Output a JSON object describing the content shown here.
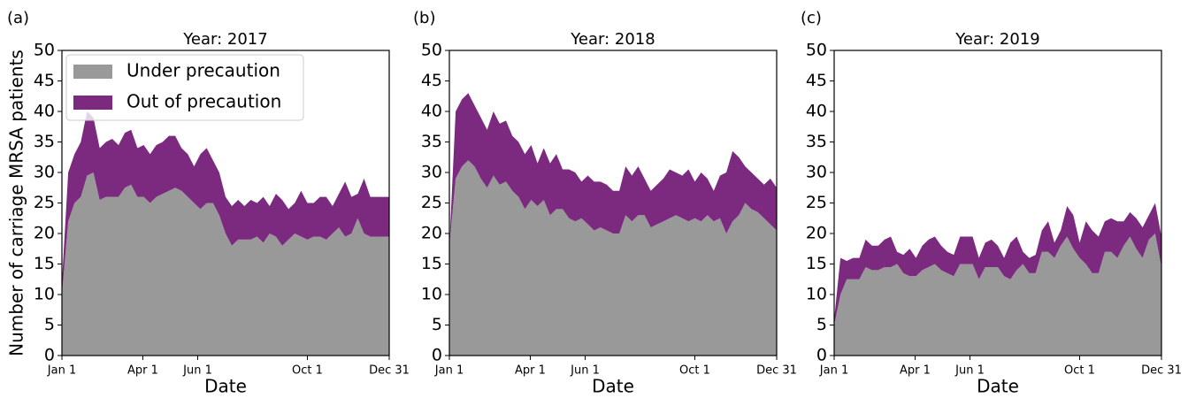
{
  "chart_data": [
    {
      "type": "area",
      "panel_label": "(a)",
      "title": "Year: 2017",
      "xlabel": "Date",
      "ylabel": "Number of carriage MRSA patients",
      "legend": "upper left",
      "x": [
        1,
        8,
        15,
        22,
        29,
        36,
        43,
        50,
        57,
        64,
        71,
        78,
        85,
        92,
        99,
        106,
        113,
        120,
        127,
        134,
        141,
        148,
        155,
        162,
        169,
        176,
        183,
        190,
        197,
        204,
        211,
        218,
        225,
        232,
        239,
        246,
        253,
        260,
        267,
        274,
        281,
        288,
        295,
        302,
        309,
        316,
        323,
        330,
        337,
        344,
        351,
        358,
        365
      ],
      "xlim": [
        1,
        365
      ],
      "xticks": [
        {
          "value": 1,
          "label": "Jan 1"
        },
        {
          "value": 91,
          "label": "Apr 1"
        },
        {
          "value": 152,
          "label": "Jun 1"
        },
        {
          "value": 274,
          "label": "Oct 1"
        },
        {
          "value": 365,
          "label": "Dec 31"
        }
      ],
      "ylim": [
        0,
        50
      ],
      "yticks": [
        0,
        5,
        10,
        15,
        20,
        25,
        30,
        35,
        40,
        45,
        50
      ],
      "series": [
        {
          "name": "Under precaution",
          "color": "#999999",
          "values": [
            10,
            22,
            25,
            26,
            29.5,
            30,
            25.5,
            26,
            26,
            26,
            27.5,
            28,
            26,
            26,
            25,
            26,
            26.5,
            27,
            27.5,
            27,
            26,
            25,
            24,
            25,
            25,
            23,
            20,
            18,
            19,
            19,
            19,
            19.5,
            18.5,
            20,
            19.5,
            18,
            19,
            20,
            19.5,
            19,
            19.5,
            19.5,
            19,
            20,
            21,
            19.5,
            20,
            22.5,
            20,
            19.5,
            19.5,
            19.5,
            19.5
          ]
        },
        {
          "name": "Out of precaution",
          "color": "#7b2a7f",
          "values": [
            2,
            8,
            8,
            9,
            10.5,
            9,
            8.5,
            9,
            9.5,
            8.5,
            9,
            9,
            8,
            8.5,
            8,
            8.5,
            8.5,
            9,
            8.5,
            7,
            7,
            6,
            9,
            9,
            7,
            7,
            6,
            6.5,
            6.5,
            5.5,
            6.5,
            5.5,
            7.5,
            4.5,
            7,
            7.5,
            5,
            5,
            7.5,
            6,
            5.5,
            6.5,
            7,
            4.5,
            5.5,
            9,
            6,
            4,
            9,
            6.5,
            6.5,
            6.5,
            6.5
          ]
        }
      ]
    },
    {
      "type": "area",
      "panel_label": "(b)",
      "title": "Year: 2018",
      "xlabel": "Date",
      "x": [
        1,
        8,
        15,
        22,
        29,
        36,
        43,
        50,
        57,
        64,
        71,
        78,
        85,
        92,
        99,
        106,
        113,
        120,
        127,
        134,
        141,
        148,
        155,
        162,
        169,
        176,
        183,
        190,
        197,
        204,
        211,
        218,
        225,
        232,
        239,
        246,
        253,
        260,
        267,
        274,
        281,
        288,
        295,
        302,
        309,
        316,
        323,
        330,
        337,
        344,
        351,
        358,
        365
      ],
      "xlim": [
        1,
        365
      ],
      "xticks": [
        {
          "value": 1,
          "label": "Jan 1"
        },
        {
          "value": 91,
          "label": "Apr 1"
        },
        {
          "value": 152,
          "label": "Jun 1"
        },
        {
          "value": 274,
          "label": "Oct 1"
        },
        {
          "value": 365,
          "label": "Dec 31"
        }
      ],
      "ylim": [
        0,
        50
      ],
      "yticks": [
        0,
        5,
        10,
        15,
        20,
        25,
        30,
        35,
        40,
        45,
        50
      ],
      "series": [
        {
          "color": "#999999",
          "values": [
            18,
            29,
            31,
            32,
            31,
            29,
            27.5,
            29.5,
            28,
            28.5,
            27,
            26,
            24,
            25.5,
            24.5,
            25.5,
            23,
            24,
            24,
            22.5,
            22,
            22.5,
            21.5,
            20.5,
            21,
            20.5,
            20,
            20,
            23,
            22,
            23,
            23,
            21,
            21.5,
            22,
            22.5,
            23,
            22.5,
            22,
            22.5,
            22,
            23,
            22,
            22.5,
            20,
            22,
            23,
            25,
            24,
            23.5,
            22.5,
            21.5,
            20.5
          ]
        },
        {
          "color": "#7b2a7f",
          "values": [
            0,
            11,
            11,
            11,
            10,
            10,
            9.5,
            10.5,
            10,
            10,
            9,
            9,
            9,
            9,
            7,
            8.5,
            8.5,
            9,
            6.5,
            8,
            8,
            6,
            8,
            8,
            7.5,
            7.5,
            7,
            7,
            8,
            7.5,
            8,
            6,
            6,
            6.5,
            7,
            8,
            7,
            7,
            8.5,
            6,
            8,
            6,
            5,
            7,
            10,
            11.5,
            9.5,
            6,
            6,
            5.5,
            5.5,
            7.5,
            7
          ]
        }
      ]
    },
    {
      "type": "area",
      "panel_label": "(c)",
      "title": "Year: 2019",
      "xlabel": "Date",
      "x": [
        1,
        8,
        15,
        22,
        29,
        36,
        43,
        50,
        57,
        64,
        71,
        78,
        85,
        92,
        99,
        106,
        113,
        120,
        127,
        134,
        141,
        148,
        155,
        162,
        169,
        176,
        183,
        190,
        197,
        204,
        211,
        218,
        225,
        232,
        239,
        246,
        253,
        260,
        267,
        274,
        281,
        288,
        295,
        302,
        309,
        316,
        323,
        330,
        337,
        344,
        351,
        358,
        365
      ],
      "xlim": [
        1,
        365
      ],
      "xticks": [
        {
          "value": 1,
          "label": "Jan 1"
        },
        {
          "value": 91,
          "label": "Apr 1"
        },
        {
          "value": 152,
          "label": "Jun 1"
        },
        {
          "value": 274,
          "label": "Oct 1"
        },
        {
          "value": 365,
          "label": "Dec 31"
        }
      ],
      "ylim": [
        0,
        50
      ],
      "yticks": [
        0,
        5,
        10,
        15,
        20,
        25,
        30,
        35,
        40,
        45,
        50
      ],
      "series": [
        {
          "color": "#999999",
          "values": [
            5,
            10,
            12.5,
            12.5,
            12.5,
            14.5,
            14,
            14,
            14.5,
            14.5,
            15,
            13.5,
            13,
            13,
            14,
            14.5,
            15,
            14,
            13.5,
            13,
            15,
            15,
            15,
            12.5,
            14.5,
            14.5,
            14.5,
            13,
            12.5,
            14,
            15,
            13.5,
            13.5,
            17,
            17,
            16,
            18,
            19.5,
            17.5,
            16,
            15,
            13.5,
            13.5,
            17,
            17,
            16,
            18,
            19.5,
            17.5,
            16,
            19,
            20,
            14.5
          ]
        },
        {
          "color": "#7b2a7f",
          "values": [
            1,
            6,
            3,
            3.5,
            3.5,
            4.5,
            4,
            4,
            4.5,
            5,
            2,
            3,
            4.5,
            3,
            4,
            4.5,
            4.5,
            4,
            3.5,
            3.5,
            4.5,
            4.5,
            4.5,
            3.5,
            4,
            4.5,
            3.5,
            3,
            6,
            5.5,
            2,
            2.5,
            3,
            3.5,
            5,
            2.5,
            2.5,
            5,
            5.5,
            2.5,
            7,
            7,
            6,
            5,
            5.5,
            6,
            4,
            4,
            5,
            5,
            4,
            5,
            5
          ]
        }
      ]
    }
  ]
}
